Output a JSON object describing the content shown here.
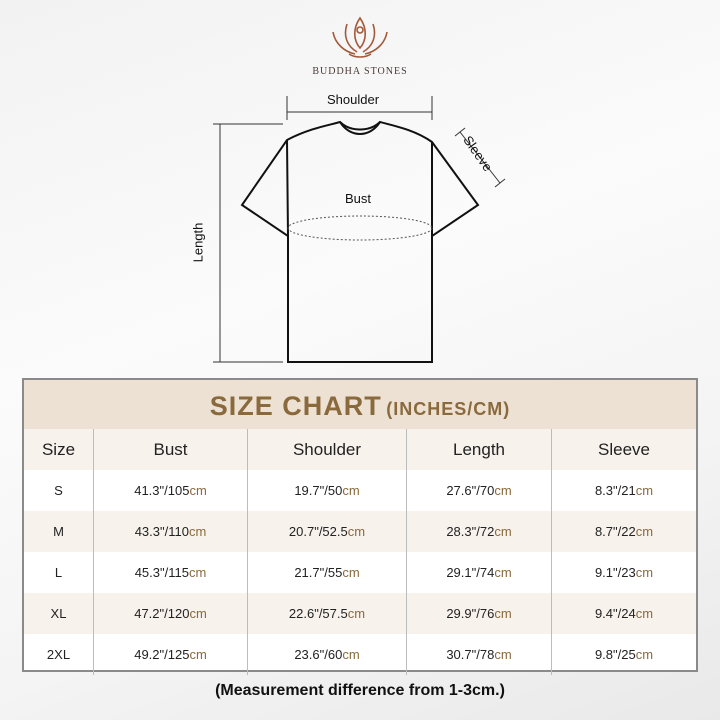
{
  "brand": {
    "name": "BUDDHA STONES"
  },
  "diagram": {
    "shoulder": "Shoulder",
    "sleeve": "Sleeve",
    "bust": "Bust",
    "length": "Length"
  },
  "chart": {
    "title": "SIZE CHART",
    "title_units": "(INCHES/CM)",
    "headers": [
      "Size",
      "Bust",
      "Shoulder",
      "Length",
      "Sleeve"
    ],
    "unit": "cm",
    "rows": [
      {
        "size": "S",
        "bust": "41.3\"/105",
        "shoulder": "19.7\"/50",
        "length": "27.6\"/70",
        "sleeve": "8.3\"/21"
      },
      {
        "size": "M",
        "bust": "43.3\"/110",
        "shoulder": "20.7\"/52.5",
        "length": "28.3\"/72",
        "sleeve": "8.7\"/22"
      },
      {
        "size": "L",
        "bust": "45.3\"/115",
        "shoulder": "21.7\"/55",
        "length": "29.1\"/74",
        "sleeve": "9.1\"/23"
      },
      {
        "size": "XL",
        "bust": "47.2\"/120",
        "shoulder": "22.6\"/57.5",
        "length": "29.9\"/76",
        "sleeve": "9.4\"/24"
      },
      {
        "size": "2XL",
        "bust": "49.2\"/125",
        "shoulder": "23.6\"/60",
        "length": "30.7\"/78",
        "sleeve": "9.8\"/25"
      }
    ],
    "note": "(Measurement difference from 1-3cm.)"
  },
  "colors": {
    "accent": "#8a6a3c",
    "header_bg": "#ece1d3",
    "logo": "#a0522d"
  }
}
